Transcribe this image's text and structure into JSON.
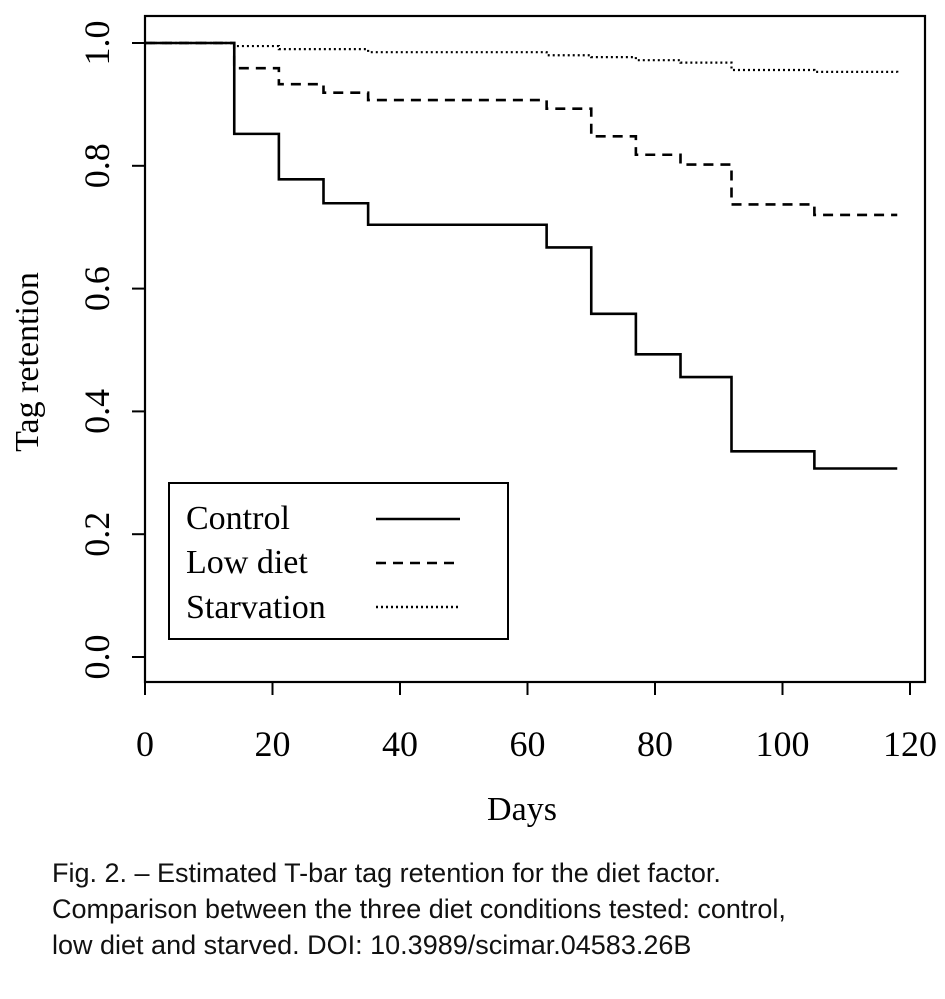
{
  "chart_data": {
    "type": "line",
    "step": true,
    "xlabel": "Days",
    "ylabel": "Tag retention",
    "xlim": [
      0,
      120
    ],
    "ylim": [
      0.0,
      1.0
    ],
    "xticks": [
      0,
      20,
      40,
      60,
      80,
      100,
      120
    ],
    "xtick_labels": [
      "0",
      "20",
      "40",
      "60",
      "80",
      "100",
      "120"
    ],
    "yticks": [
      0.0,
      0.2,
      0.4,
      0.6,
      0.8,
      1.0
    ],
    "ytick_labels": [
      "0.0",
      "0.2",
      "0.4",
      "0.6",
      "0.8",
      "1.0"
    ],
    "grid": false,
    "legend_position": "bottom-left",
    "series": [
      {
        "name": "Control",
        "line_style": "solid",
        "x": [
          0,
          14,
          21,
          28,
          35,
          63,
          70,
          77,
          84,
          92,
          105,
          118
        ],
        "y": [
          1.0,
          0.852,
          0.778,
          0.739,
          0.704,
          0.667,
          0.559,
          0.493,
          0.456,
          0.335,
          0.307,
          0.307
        ]
      },
      {
        "name": "Low diet",
        "line_style": "dashed",
        "x": [
          0,
          14,
          21,
          28,
          35,
          63,
          70,
          77,
          84,
          92,
          105,
          118
        ],
        "y": [
          1.0,
          0.959,
          0.933,
          0.919,
          0.907,
          0.893,
          0.848,
          0.818,
          0.802,
          0.737,
          0.72,
          0.72
        ]
      },
      {
        "name": "Starvation",
        "line_style": "dotted",
        "x": [
          0,
          14,
          21,
          35,
          63,
          70,
          77,
          84,
          92,
          105,
          118
        ],
        "y": [
          1.0,
          0.995,
          0.99,
          0.985,
          0.98,
          0.977,
          0.972,
          0.968,
          0.956,
          0.953,
          0.952
        ]
      }
    ]
  },
  "caption": {
    "line1": "Fig. 2. – Estimated T-bar tag retention for the diet factor.",
    "line2": "Comparison between the three diet conditions tested: control,",
    "line3": "low diet and starved. DOI: 10.3989/scimar.04583.26B"
  }
}
